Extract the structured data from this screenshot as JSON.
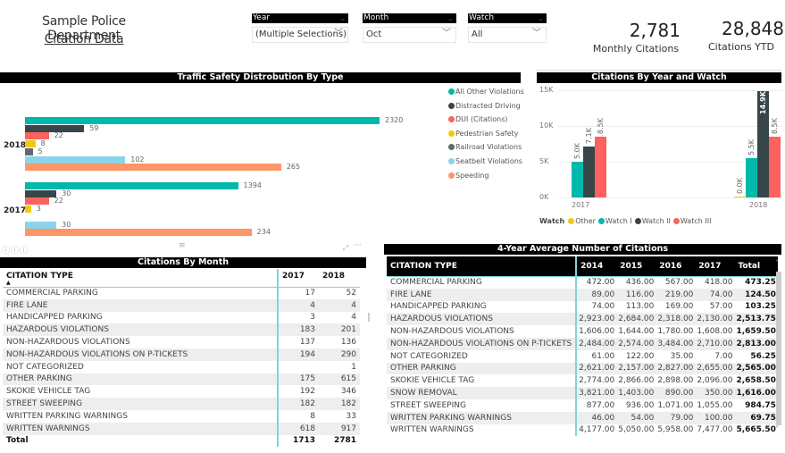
{
  "header": {
    "title_line1": "Sample Police Department",
    "title_line2": "Citation Data"
  },
  "slicers": [
    {
      "label": "Year",
      "value": "(Multiple Selections)"
    },
    {
      "label": "Month",
      "value": "Oct"
    },
    {
      "label": "Watch",
      "value": "All"
    }
  ],
  "kpis": [
    {
      "value": "2,781",
      "label": "Monthly Citations"
    },
    {
      "value": "28,848",
      "label": "Citations YTD"
    }
  ],
  "icons": {
    "chevron": "﹀"
  },
  "colors": {
    "all_other": "#01b8aa",
    "distracted": "#374649",
    "dui": "#fd625e",
    "pedestrian": "#f2c80f",
    "railroad": "#5f6b6d",
    "seatbelt": "#8ad4eb",
    "speeding": "#fe9666"
  },
  "chart_data": [
    {
      "type": "bar",
      "orientation": "horizontal",
      "title": "Traffic Safety Distrobution By Type",
      "categories": [
        "2018",
        "2017"
      ],
      "series": [
        {
          "name": "All Other Violations",
          "color": "#01b8aa",
          "values": [
            2320,
            1394
          ]
        },
        {
          "name": "Distracted Driving",
          "color": "#374649",
          "values": [
            59,
            30
          ]
        },
        {
          "name": "DUI (Citations)",
          "color": "#fd625e",
          "values": [
            22,
            22
          ]
        },
        {
          "name": "Pedestrian Safety",
          "color": "#f2c80f",
          "values": [
            8,
            3
          ]
        },
        {
          "name": "Railroad Violations",
          "color": "#5f6b6d",
          "values": [
            5,
            null
          ]
        },
        {
          "name": "Seatbelt Violations",
          "color": "#8ad4eb",
          "values": [
            102,
            30
          ]
        },
        {
          "name": "Speeding",
          "color": "#fe9666",
          "values": [
            265,
            234
          ]
        }
      ],
      "legend_position": "right"
    },
    {
      "type": "bar",
      "orientation": "vertical",
      "title": "Citations By  Year and Watch",
      "categories": [
        "2017",
        "2018"
      ],
      "legend_title": "Watch",
      "series": [
        {
          "name": "Other",
          "color": "#f2c80f",
          "values": [
            null,
            0
          ],
          "labels": [
            null,
            "0.0K"
          ]
        },
        {
          "name": "Watch I",
          "color": "#01b8aa",
          "values": [
            5000,
            5500
          ],
          "labels": [
            "5.0K",
            "5.5K"
          ]
        },
        {
          "name": "Watch II",
          "color": "#374649",
          "values": [
            7100,
            14900
          ],
          "labels": [
            "7.1K",
            "14.9K"
          ]
        },
        {
          "name": "Watch III",
          "color": "#fd625e",
          "values": [
            8500,
            8500
          ],
          "labels": [
            "8.5K",
            "8.5K"
          ]
        }
      ],
      "yticks": [
        "0K",
        "5K",
        "10K",
        "15K"
      ],
      "ylim": [
        0,
        15000
      ],
      "legend_position": "bottom-left",
      "grid": true
    }
  ],
  "monthly_table": {
    "title": "Citations By Month",
    "columns": [
      "CITATION TYPE",
      "2017",
      "2018"
    ],
    "rows": [
      [
        "COMMERCIAL PARKING",
        "17",
        "52"
      ],
      [
        "FIRE LANE",
        "4",
        "4"
      ],
      [
        "HANDICAPPED PARKING",
        "3",
        "4"
      ],
      [
        "HAZARDOUS VIOLATIONS",
        "183",
        "201"
      ],
      [
        "NON-HAZARDOUS VIOLATIONS",
        "137",
        "136"
      ],
      [
        "NON-HAZARDOUS VIOLATIONS ON P-TICKETS",
        "194",
        "290"
      ],
      [
        "NOT CATEGORIZED",
        "",
        "1"
      ],
      [
        "OTHER PARKING",
        "175",
        "615"
      ],
      [
        "SKOKIE VEHICLE TAG",
        "192",
        "346"
      ],
      [
        "STREET SWEEPING",
        "182",
        "182"
      ],
      [
        "WRITTEN PARKING WARNINGS",
        "8",
        "33"
      ],
      [
        "WRITTEN WARNINGS",
        "618",
        "917"
      ]
    ],
    "total": [
      "Total",
      "1713",
      "2781"
    ]
  },
  "avg_table": {
    "title": "4-Year Average Number of Citations",
    "columns": [
      "CITATION TYPE",
      "2014",
      "2015",
      "2016",
      "2017",
      "Total"
    ],
    "rows": [
      [
        "COMMERCIAL PARKING",
        "472.00",
        "436.00",
        "567.00",
        "418.00",
        "473.25"
      ],
      [
        "FIRE LANE",
        "89.00",
        "116.00",
        "219.00",
        "74.00",
        "124.50"
      ],
      [
        "HANDICAPPED PARKING",
        "74.00",
        "113.00",
        "169.00",
        "57.00",
        "103.25"
      ],
      [
        "HAZARDOUS VIOLATIONS",
        "2,923.00",
        "2,684.00",
        "2,318.00",
        "2,130.00",
        "2,513.75"
      ],
      [
        "NON-HAZARDOUS VIOLATIONS",
        "1,606.00",
        "1,644.00",
        "1,780.00",
        "1,608.00",
        "1,659.50"
      ],
      [
        "NON-HAZARDOUS VIOLATIONS ON P-TICKETS",
        "2,484.00",
        "2,574.00",
        "3,484.00",
        "2,710.00",
        "2,813.00"
      ],
      [
        "NOT CATEGORIZED",
        "61.00",
        "122.00",
        "35.00",
        "7.00",
        "56.25"
      ],
      [
        "OTHER PARKING",
        "2,621.00",
        "2,157.00",
        "2,827.00",
        "2,655.00",
        "2,565.00"
      ],
      [
        "SKOKIE VEHICLE TAG",
        "2,774.00",
        "2,866.00",
        "2,898.00",
        "2,096.00",
        "2,658.50"
      ],
      [
        "SNOW REMOVAL",
        "3,821.00",
        "1,403.00",
        "890.00",
        "350.00",
        "1,616.00"
      ],
      [
        "STREET SWEEPING",
        "877.00",
        "936.00",
        "1,071.00",
        "1,055.00",
        "984.75"
      ],
      [
        "WRITTEN PARKING WARNINGS",
        "46.00",
        "54.00",
        "79.00",
        "100.00",
        "69.75"
      ],
      [
        "WRITTEN WARNINGS",
        "4,177.00",
        "5,050.00",
        "5,958.00",
        "7,477.00",
        "5,665.50"
      ]
    ]
  }
}
